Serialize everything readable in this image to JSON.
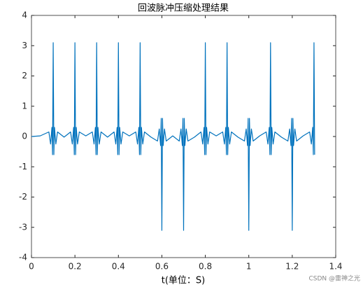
{
  "chart_data": {
    "type": "line",
    "title": "回波脉冲压缩处理结果",
    "x_label": "t(单位：S)",
    "watermark": "CSDN @雷神之光",
    "color": "#0072bd",
    "xlim": [
      0,
      1.4
    ],
    "xticks": [
      0,
      0.2,
      0.4,
      0.6,
      0.8,
      1,
      1.2,
      1.4
    ],
    "ylim": [
      -4,
      4
    ],
    "yticks": [
      -4,
      -3,
      -2,
      -1,
      0,
      1,
      2,
      3,
      4
    ],
    "grid": false,
    "x": [
      0,
      0.04,
      0.08,
      0.088,
      0.094,
      0.097,
      0.1,
      0.103,
      0.106,
      0.112,
      0.12,
      0.15,
      0.18,
      0.188,
      0.194,
      0.197,
      0.2,
      0.203,
      0.206,
      0.212,
      0.22,
      0.25,
      0.28,
      0.288,
      0.294,
      0.297,
      0.3,
      0.303,
      0.306,
      0.312,
      0.32,
      0.35,
      0.38,
      0.388,
      0.394,
      0.397,
      0.4,
      0.403,
      0.406,
      0.412,
      0.42,
      0.45,
      0.48,
      0.488,
      0.494,
      0.497,
      0.5,
      0.503,
      0.506,
      0.512,
      0.52,
      0.55,
      0.58,
      0.588,
      0.594,
      0.597,
      0.6,
      0.603,
      0.606,
      0.612,
      0.62,
      0.65,
      0.68,
      0.688,
      0.694,
      0.697,
      0.7,
      0.703,
      0.706,
      0.712,
      0.72,
      0.75,
      0.78,
      0.788,
      0.794,
      0.797,
      0.8,
      0.803,
      0.806,
      0.812,
      0.82,
      0.85,
      0.88,
      0.888,
      0.894,
      0.897,
      0.9,
      0.903,
      0.906,
      0.912,
      0.92,
      0.95,
      0.98,
      0.988,
      0.994,
      0.997,
      1,
      1.003,
      1.006,
      1.012,
      1.02,
      1.05,
      1.08,
      1.088,
      1.094,
      1.097,
      1.1,
      1.103,
      1.106,
      1.112,
      1.12,
      1.15,
      1.18,
      1.188,
      1.194,
      1.197,
      1.2,
      1.203,
      1.206,
      1.212,
      1.22,
      1.25,
      1.28,
      1.288,
      1.294,
      1.297,
      1.3,
      1.303
    ],
    "values": [
      0,
      0.02,
      0.15,
      -0.25,
      0.3,
      -0.6,
      3.1,
      -0.6,
      0.3,
      -0.25,
      0.15,
      -0.02,
      0.15,
      -0.25,
      0.3,
      -0.6,
      3.1,
      -0.6,
      0.3,
      -0.25,
      0.15,
      0.02,
      0.15,
      -0.25,
      0.3,
      -0.6,
      3.1,
      -0.6,
      0.3,
      -0.25,
      0.15,
      -0.02,
      0.15,
      -0.25,
      0.3,
      -0.6,
      3.1,
      -0.6,
      0.3,
      -0.25,
      0.15,
      0.02,
      0.15,
      -0.25,
      0.3,
      -0.6,
      3.1,
      -0.6,
      0.3,
      -0.25,
      0.15,
      -0.02,
      -0.15,
      0.25,
      -0.3,
      0.6,
      -3.1,
      0.6,
      -0.3,
      0.25,
      -0.15,
      0.02,
      -0.15,
      0.25,
      -0.3,
      0.6,
      -3.1,
      0.6,
      -0.3,
      0.25,
      -0.15,
      -0.02,
      0.15,
      -0.25,
      0.3,
      -0.6,
      3.1,
      -0.6,
      0.3,
      -0.25,
      0.15,
      0.02,
      0.15,
      -0.25,
      0.3,
      -0.6,
      3.1,
      -0.6,
      0.3,
      -0.25,
      0.15,
      -0.02,
      -0.15,
      0.25,
      -0.3,
      0.6,
      -3.1,
      0.6,
      -0.3,
      0.25,
      -0.15,
      0.02,
      0.15,
      -0.25,
      0.3,
      -0.6,
      3.1,
      -0.6,
      0.3,
      -0.25,
      0.15,
      -0.02,
      -0.15,
      0.25,
      -0.3,
      0.6,
      -3.1,
      0.6,
      -0.3,
      0.25,
      -0.15,
      0.02,
      0.15,
      -0.25,
      0.3,
      -0.6,
      3.1,
      -0.6
    ]
  }
}
